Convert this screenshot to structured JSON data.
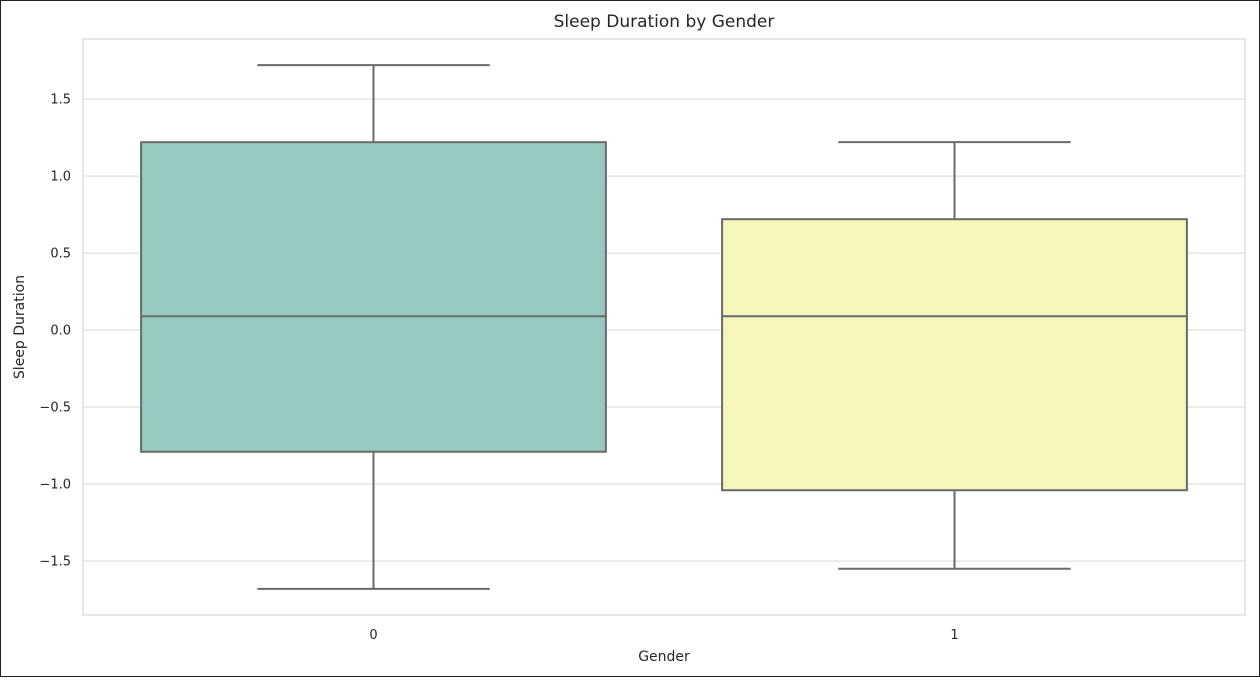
{
  "chart_data": {
    "type": "box",
    "title": "Sleep Duration by Gender",
    "xlabel": "Gender",
    "ylabel": "Sleep Duration",
    "categories": [
      "0",
      "1"
    ],
    "boxes": [
      {
        "category": "0",
        "whisker_low": -1.68,
        "q1": -0.79,
        "median": 0.09,
        "q3": 1.22,
        "whisker_high": 1.72,
        "color": "#96c9c0"
      },
      {
        "category": "1",
        "whisker_low": -1.55,
        "q1": -1.04,
        "median": 0.09,
        "q3": 0.72,
        "whisker_high": 1.22,
        "color": "#f5f6bb"
      }
    ],
    "yticks": [
      {
        "value": -1.5,
        "label": "−1.5"
      },
      {
        "value": -1.0,
        "label": "−1.0"
      },
      {
        "value": -0.5,
        "label": "−0.5"
      },
      {
        "value": 0.0,
        "label": "0.0"
      },
      {
        "value": 0.5,
        "label": "0.5"
      },
      {
        "value": 1.0,
        "label": "1.0"
      },
      {
        "value": 1.5,
        "label": "1.5"
      }
    ],
    "ylim": [
      -1.85,
      1.89
    ],
    "grid": true,
    "line_color": "#6a6a6a",
    "grid_color": "#d9d9d9"
  }
}
